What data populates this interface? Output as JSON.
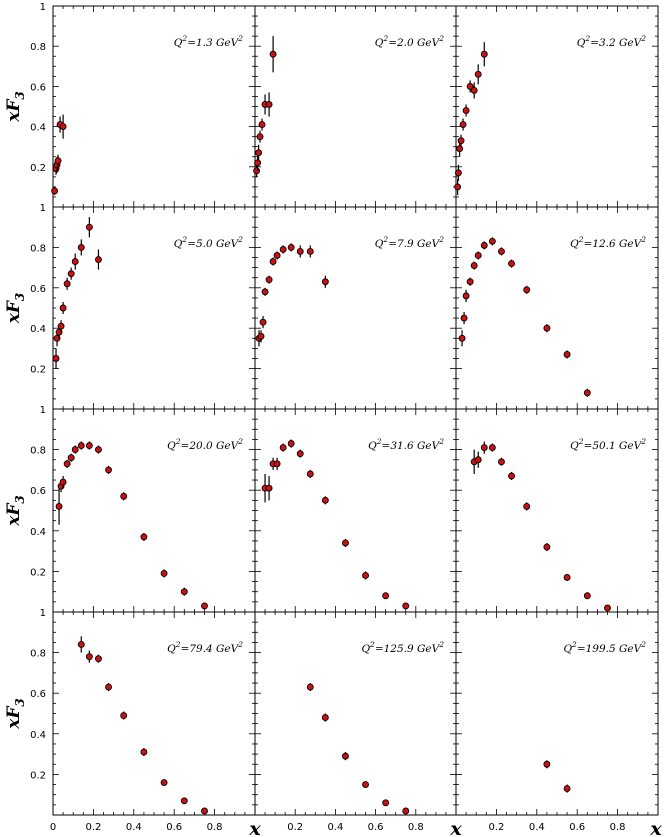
{
  "chart_data": {
    "type": "scatter",
    "layout": "3x4 grid of panels",
    "x_axis": {
      "label": "x",
      "range": [
        0,
        1
      ],
      "ticks": [
        "0",
        "0.2",
        "0.4",
        "0.6",
        "0.8"
      ]
    },
    "y_axis": {
      "label": "xF3",
      "range": [
        0,
        1
      ],
      "ticks": [
        "0.2",
        "0.4",
        "0.6",
        "0.8",
        "1"
      ]
    },
    "marker_color": "#cc1111",
    "panels": [
      {
        "label": "Q2=1.3 GeV2",
        "q2": "1.3",
        "points": [
          {
            "x": 0.008,
            "y": 0.08,
            "err": 0.02
          },
          {
            "x": 0.015,
            "y": 0.19,
            "err": 0.03
          },
          {
            "x": 0.02,
            "y": 0.21,
            "err": 0.04
          },
          {
            "x": 0.025,
            "y": 0.23,
            "err": 0.03
          },
          {
            "x": 0.035,
            "y": 0.41,
            "err": 0.04
          },
          {
            "x": 0.05,
            "y": 0.4,
            "err": 0.06
          }
        ]
      },
      {
        "label": "Q2=2.0 GeV2",
        "q2": "2.0",
        "points": [
          {
            "x": 0.008,
            "y": 0.18,
            "err": 0.03
          },
          {
            "x": 0.013,
            "y": 0.22,
            "err": 0.04
          },
          {
            "x": 0.018,
            "y": 0.27,
            "err": 0.04
          },
          {
            "x": 0.025,
            "y": 0.35,
            "err": 0.03
          },
          {
            "x": 0.035,
            "y": 0.41,
            "err": 0.03
          },
          {
            "x": 0.05,
            "y": 0.51,
            "err": 0.05
          },
          {
            "x": 0.07,
            "y": 0.51,
            "err": 0.06
          },
          {
            "x": 0.09,
            "y": 0.76,
            "err": 0.09
          }
        ]
      },
      {
        "label": "Q2=3.2 GeV2",
        "q2": "3.2",
        "points": [
          {
            "x": 0.008,
            "y": 0.1,
            "err": 0.04
          },
          {
            "x": 0.012,
            "y": 0.17,
            "err": 0.04
          },
          {
            "x": 0.018,
            "y": 0.29,
            "err": 0.04
          },
          {
            "x": 0.025,
            "y": 0.33,
            "err": 0.03
          },
          {
            "x": 0.035,
            "y": 0.41,
            "err": 0.03
          },
          {
            "x": 0.05,
            "y": 0.48,
            "err": 0.03
          },
          {
            "x": 0.07,
            "y": 0.6,
            "err": 0.03
          },
          {
            "x": 0.09,
            "y": 0.58,
            "err": 0.04
          },
          {
            "x": 0.11,
            "y": 0.66,
            "err": 0.05
          },
          {
            "x": 0.14,
            "y": 0.76,
            "err": 0.06
          }
        ]
      },
      {
        "label": "Q2=5.0 GeV2",
        "q2": "5.0",
        "points": [
          {
            "x": 0.015,
            "y": 0.25,
            "err": 0.05
          },
          {
            "x": 0.02,
            "y": 0.35,
            "err": 0.04
          },
          {
            "x": 0.03,
            "y": 0.38,
            "err": 0.03
          },
          {
            "x": 0.04,
            "y": 0.41,
            "err": 0.03
          },
          {
            "x": 0.05,
            "y": 0.5,
            "err": 0.03
          },
          {
            "x": 0.07,
            "y": 0.62,
            "err": 0.03
          },
          {
            "x": 0.09,
            "y": 0.67,
            "err": 0.03
          },
          {
            "x": 0.11,
            "y": 0.73,
            "err": 0.04
          },
          {
            "x": 0.14,
            "y": 0.8,
            "err": 0.04
          },
          {
            "x": 0.18,
            "y": 0.9,
            "err": 0.05
          },
          {
            "x": 0.225,
            "y": 0.74,
            "err": 0.05
          }
        ]
      },
      {
        "label": "Q2=7.9 GeV2",
        "q2": "7.9",
        "points": [
          {
            "x": 0.02,
            "y": 0.35,
            "err": 0.04
          },
          {
            "x": 0.03,
            "y": 0.36,
            "err": 0.03
          },
          {
            "x": 0.04,
            "y": 0.43,
            "err": 0.03
          },
          {
            "x": 0.05,
            "y": 0.58,
            "err": 0.02
          },
          {
            "x": 0.07,
            "y": 0.64,
            "err": 0.02
          },
          {
            "x": 0.09,
            "y": 0.73,
            "err": 0.02
          },
          {
            "x": 0.11,
            "y": 0.76,
            "err": 0.02
          },
          {
            "x": 0.14,
            "y": 0.79,
            "err": 0.02
          },
          {
            "x": 0.18,
            "y": 0.8,
            "err": 0.02
          },
          {
            "x": 0.225,
            "y": 0.78,
            "err": 0.03
          },
          {
            "x": 0.275,
            "y": 0.78,
            "err": 0.03
          },
          {
            "x": 0.35,
            "y": 0.63,
            "err": 0.03
          }
        ]
      },
      {
        "label": "Q2=12.6 GeV2",
        "q2": "12.6",
        "points": [
          {
            "x": 0.03,
            "y": 0.35,
            "err": 0.04
          },
          {
            "x": 0.04,
            "y": 0.45,
            "err": 0.03
          },
          {
            "x": 0.05,
            "y": 0.56,
            "err": 0.03
          },
          {
            "x": 0.07,
            "y": 0.63,
            "err": 0.02
          },
          {
            "x": 0.09,
            "y": 0.71,
            "err": 0.02
          },
          {
            "x": 0.11,
            "y": 0.76,
            "err": 0.02
          },
          {
            "x": 0.14,
            "y": 0.81,
            "err": 0.02
          },
          {
            "x": 0.18,
            "y": 0.83,
            "err": 0.02
          },
          {
            "x": 0.225,
            "y": 0.78,
            "err": 0.02
          },
          {
            "x": 0.275,
            "y": 0.72,
            "err": 0.02
          },
          {
            "x": 0.35,
            "y": 0.59,
            "err": 0.02
          },
          {
            "x": 0.45,
            "y": 0.4,
            "err": 0.02
          },
          {
            "x": 0.55,
            "y": 0.27,
            "err": 0.02
          },
          {
            "x": 0.65,
            "y": 0.08,
            "err": 0.02
          }
        ]
      },
      {
        "label": "Q2=20.0 GeV2",
        "q2": "20.0",
        "points": [
          {
            "x": 0.03,
            "y": 0.52,
            "err": 0.09
          },
          {
            "x": 0.04,
            "y": 0.62,
            "err": 0.03
          },
          {
            "x": 0.05,
            "y": 0.64,
            "err": 0.03
          },
          {
            "x": 0.07,
            "y": 0.73,
            "err": 0.02
          },
          {
            "x": 0.09,
            "y": 0.76,
            "err": 0.02
          },
          {
            "x": 0.11,
            "y": 0.8,
            "err": 0.02
          },
          {
            "x": 0.14,
            "y": 0.82,
            "err": 0.02
          },
          {
            "x": 0.18,
            "y": 0.82,
            "err": 0.02
          },
          {
            "x": 0.225,
            "y": 0.8,
            "err": 0.02
          },
          {
            "x": 0.275,
            "y": 0.7,
            "err": 0.02
          },
          {
            "x": 0.35,
            "y": 0.57,
            "err": 0.02
          },
          {
            "x": 0.45,
            "y": 0.37,
            "err": 0.02
          },
          {
            "x": 0.55,
            "y": 0.19,
            "err": 0.02
          },
          {
            "x": 0.65,
            "y": 0.1,
            "err": 0.02
          },
          {
            "x": 0.75,
            "y": 0.03,
            "err": 0.01
          }
        ]
      },
      {
        "label": "Q2=31.6 GeV2",
        "q2": "31.6",
        "points": [
          {
            "x": 0.05,
            "y": 0.61,
            "err": 0.07
          },
          {
            "x": 0.07,
            "y": 0.61,
            "err": 0.06
          },
          {
            "x": 0.09,
            "y": 0.73,
            "err": 0.03
          },
          {
            "x": 0.11,
            "y": 0.73,
            "err": 0.03
          },
          {
            "x": 0.14,
            "y": 0.81,
            "err": 0.02
          },
          {
            "x": 0.18,
            "y": 0.83,
            "err": 0.02
          },
          {
            "x": 0.225,
            "y": 0.78,
            "err": 0.02
          },
          {
            "x": 0.275,
            "y": 0.68,
            "err": 0.02
          },
          {
            "x": 0.35,
            "y": 0.55,
            "err": 0.02
          },
          {
            "x": 0.45,
            "y": 0.34,
            "err": 0.02
          },
          {
            "x": 0.55,
            "y": 0.18,
            "err": 0.02
          },
          {
            "x": 0.65,
            "y": 0.08,
            "err": 0.01
          },
          {
            "x": 0.75,
            "y": 0.03,
            "err": 0.01
          }
        ]
      },
      {
        "label": "Q2=50.1 GeV2",
        "q2": "50.1",
        "points": [
          {
            "x": 0.09,
            "y": 0.74,
            "err": 0.06
          },
          {
            "x": 0.11,
            "y": 0.75,
            "err": 0.04
          },
          {
            "x": 0.14,
            "y": 0.81,
            "err": 0.03
          },
          {
            "x": 0.18,
            "y": 0.81,
            "err": 0.02
          },
          {
            "x": 0.225,
            "y": 0.74,
            "err": 0.02
          },
          {
            "x": 0.275,
            "y": 0.67,
            "err": 0.02
          },
          {
            "x": 0.35,
            "y": 0.52,
            "err": 0.02
          },
          {
            "x": 0.45,
            "y": 0.32,
            "err": 0.02
          },
          {
            "x": 0.55,
            "y": 0.17,
            "err": 0.01
          },
          {
            "x": 0.65,
            "y": 0.08,
            "err": 0.01
          },
          {
            "x": 0.75,
            "y": 0.02,
            "err": 0.01
          }
        ]
      },
      {
        "label": "Q2=79.4 GeV2",
        "q2": "79.4",
        "points": [
          {
            "x": 0.14,
            "y": 0.84,
            "err": 0.04
          },
          {
            "x": 0.18,
            "y": 0.78,
            "err": 0.03
          },
          {
            "x": 0.225,
            "y": 0.77,
            "err": 0.02
          },
          {
            "x": 0.275,
            "y": 0.63,
            "err": 0.02
          },
          {
            "x": 0.35,
            "y": 0.49,
            "err": 0.02
          },
          {
            "x": 0.45,
            "y": 0.31,
            "err": 0.02
          },
          {
            "x": 0.55,
            "y": 0.16,
            "err": 0.01
          },
          {
            "x": 0.65,
            "y": 0.07,
            "err": 0.01
          },
          {
            "x": 0.75,
            "y": 0.02,
            "err": 0.01
          }
        ]
      },
      {
        "label": "Q2=125.9 GeV2",
        "q2": "125.9",
        "points": [
          {
            "x": 0.275,
            "y": 0.63,
            "err": 0.02
          },
          {
            "x": 0.35,
            "y": 0.48,
            "err": 0.02
          },
          {
            "x": 0.45,
            "y": 0.29,
            "err": 0.02
          },
          {
            "x": 0.55,
            "y": 0.15,
            "err": 0.01
          },
          {
            "x": 0.65,
            "y": 0.06,
            "err": 0.01
          },
          {
            "x": 0.75,
            "y": 0.02,
            "err": 0.01
          }
        ]
      },
      {
        "label": "Q2=199.5 GeV2",
        "q2": "199.5",
        "points": [
          {
            "x": 0.45,
            "y": 0.25,
            "err": 0.02
          },
          {
            "x": 0.55,
            "y": 0.13,
            "err": 0.02
          }
        ]
      }
    ]
  }
}
